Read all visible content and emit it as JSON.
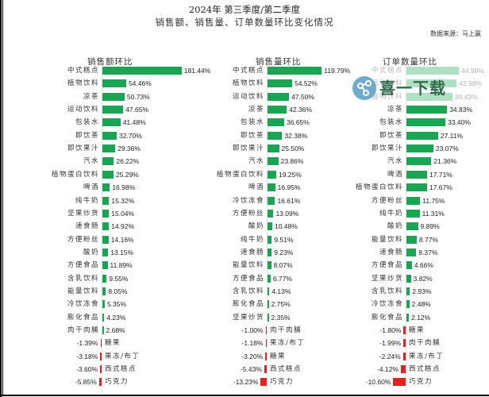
{
  "header": {
    "title_line1": "2024年  第三季度/第二季度",
    "title_line2": "销售额、销售量、订单数量环比变化情况",
    "source": "数据来源：马上赢"
  },
  "colors": {
    "positive": "#1aa555",
    "negative": "#e8201f",
    "axis": "#e4e4e4"
  },
  "watermark": {
    "text": "喜一下载"
  },
  "chart_data": [
    {
      "type": "bar",
      "orientation": "horizontal",
      "title": "销售额环比",
      "categories": [
        "中式糕点",
        "植物饮料",
        "凉茶",
        "运动饮料",
        "包装水",
        "即饮茶",
        "即饮果汁",
        "汽水",
        "植物蛋白饮料",
        "啤酒",
        "纯牛奶",
        "坚果炒货",
        "速食肠",
        "方便粉丝",
        "酸奶",
        "方便食品",
        "含乳饮料",
        "能量饮料",
        "冷饮冻食",
        "膨化食品",
        "肉干肉脯",
        "糖果",
        "果冻/布丁",
        "西式糕点",
        "巧克力"
      ],
      "values": [
        181.44,
        54.46,
        50.73,
        47.65,
        41.48,
        32.7,
        29.36,
        26.22,
        25.29,
        16.98,
        15.32,
        15.04,
        14.92,
        14.16,
        13.15,
        11.89,
        9.55,
        8.05,
        5.35,
        4.23,
        2.68,
        -1.39,
        -3.18,
        -3.6,
        -5.85
      ],
      "labels": [
        "181.44%",
        "54.46%",
        "50.73%",
        "47.65%",
        "41.48%",
        "32.70%",
        "29.36%",
        "26.22%",
        "25.29%",
        "16.98%",
        "15.32%",
        "15.04%",
        "14.92%",
        "14.16%",
        "13.15%",
        "11.89%",
        "9.55%",
        "8.05%",
        "5.35%",
        "4.23%",
        "2.68%",
        "-1.39%",
        "-3.18%",
        "-3.60%",
        "-5.85%"
      ],
      "unit": "%"
    },
    {
      "type": "bar",
      "orientation": "horizontal",
      "title": "销售量环比",
      "categories": [
        "中式糕点",
        "植物饮料",
        "运动饮料",
        "凉茶",
        "包装水",
        "即饮茶",
        "即饮果汁",
        "汽水",
        "植物蛋白饮料",
        "啤酒",
        "冷饮冻食",
        "方便粉丝",
        "酸奶",
        "纯牛奶",
        "速食肠",
        "能量饮料",
        "方便食品",
        "含乳饮料",
        "膨化食品",
        "坚果炒货",
        "肉干肉脯",
        "果冻/布丁",
        "糖果",
        "西式糕点",
        "巧克力"
      ],
      "values": [
        119.79,
        54.52,
        47.5,
        42.36,
        36.65,
        32.38,
        25.5,
        23.86,
        19.25,
        16.95,
        16.61,
        13.09,
        10.48,
        9.51,
        9.23,
        8.07,
        6.77,
        4.13,
        2.75,
        2.35,
        -1.0,
        -1.18,
        -3.2,
        -5.43,
        -13.23
      ],
      "labels": [
        "119.79%",
        "54.52%",
        "47.50%",
        "42.36%",
        "36.65%",
        "32.38%",
        "25.50%",
        "23.86%",
        "19.25%",
        "16.95%",
        "16.61%",
        "13.09%",
        "10.48%",
        "9.51%",
        "9.23%",
        "8.07%",
        "6.77%",
        "4.13%",
        "2.75%",
        "2.35%",
        "-1.00%",
        "-1.18%",
        "-3.20%",
        "-5.43%",
        "-13.23%"
      ],
      "unit": "%"
    },
    {
      "type": "bar",
      "orientation": "horizontal",
      "title": "订单数量环比",
      "categories": [
        "中式糕点",
        "运动饮料",
        "植物饮料",
        "凉茶",
        "包装水",
        "即饮茶",
        "即饮果汁",
        "汽水",
        "啤酒",
        "植物蛋白饮料",
        "方便粉丝",
        "纯牛奶",
        "酸奶",
        "能量饮料",
        "速食肠",
        "方便食品",
        "坚果炒货",
        "含乳饮料",
        "冷饮冻食",
        "膨化食品",
        "糖果",
        "肉干肉脯",
        "果冻/布丁",
        "西式糕点",
        "巧克力"
      ],
      "values": [
        44.98,
        42.98,
        39.43,
        34.83,
        33.4,
        27.11,
        23.07,
        21.36,
        17.71,
        17.67,
        11.75,
        11.31,
        9.89,
        8.77,
        8.37,
        4.66,
        3.82,
        2.93,
        2.48,
        2.12,
        -1.8,
        -1.99,
        -2.24,
        -4.12,
        -10.6
      ],
      "labels": [
        "44.98%",
        "42.98%",
        "39.43%",
        "34.83%",
        "33.40%",
        "27.11%",
        "23.07%",
        "21.36%",
        "17.71%",
        "17.67%",
        "11.75%",
        "11.31%",
        "9.89%",
        "8.77%",
        "8.37%",
        "4.66%",
        "3.82%",
        "2.93%",
        "2.48%",
        "2.12%",
        "-1.80%",
        "-1.99%",
        "-2.24%",
        "-4.12%",
        "-10.60%"
      ],
      "unit": "%"
    }
  ]
}
